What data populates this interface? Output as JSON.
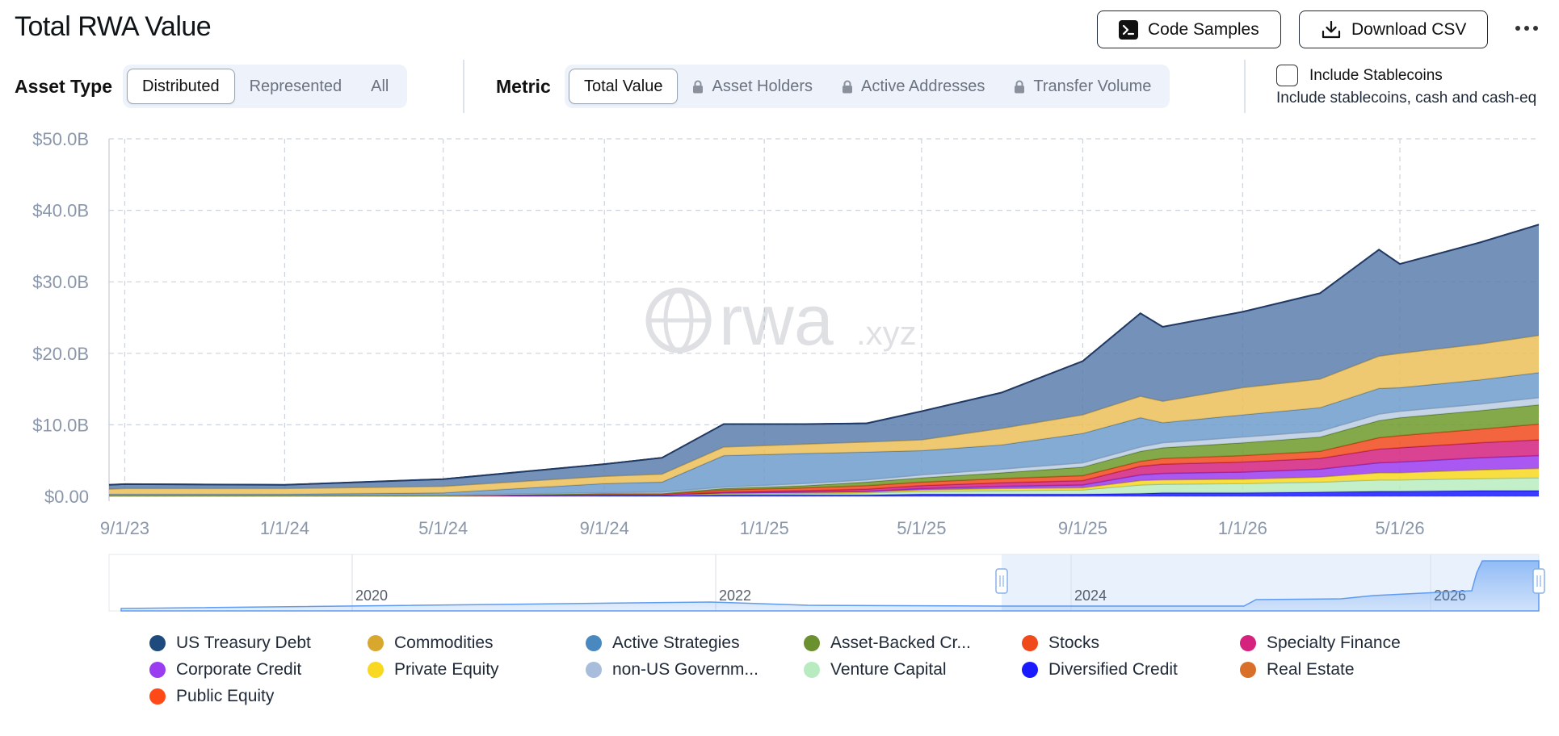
{
  "title": "Total RWA Value",
  "toolbar": {
    "code_label": "Code Samples",
    "download_label": "Download CSV"
  },
  "asset_type": {
    "label": "Asset Type",
    "options": [
      "Distributed",
      "Represented",
      "All"
    ],
    "selected": "Distributed"
  },
  "metric": {
    "label": "Metric",
    "options": [
      "Total Value",
      "Asset Holders",
      "Active Addresses",
      "Transfer Volume"
    ],
    "locked": [
      false,
      true,
      true,
      true
    ],
    "selected": "Total Value"
  },
  "stablecoins": {
    "label": "Include Stablecoins",
    "description": "Include stablecoins, cash and cash-eq",
    "checked": false
  },
  "chart_data": {
    "type": "area",
    "stacked": true,
    "yticks": [
      "$0.00",
      "$10.0B",
      "$20.0B",
      "$30.0B",
      "$40.0B",
      "$50.0B"
    ],
    "ylim": [
      0,
      50
    ],
    "xticks": [
      "9/1/23",
      "1/1/24",
      "5/1/24",
      "9/1/24",
      "1/1/25",
      "5/1/25",
      "9/1/25",
      "1/1/26",
      "5/1/26"
    ],
    "x": [
      "2023-08-20",
      "2023-09-01",
      "2024-01-01",
      "2024-05-01",
      "2024-09-01",
      "2024-10-15",
      "2024-12-01",
      "2025-02-01",
      "2025-03-20",
      "2025-05-01",
      "2025-07-01",
      "2025-09-01",
      "2025-10-15",
      "2025-11-01",
      "2026-01-01",
      "2026-03-01",
      "2026-04-15",
      "2026-05-01",
      "2026-07-01",
      "2026-08-15"
    ],
    "grid": true,
    "legend_position": "bottom",
    "series": [
      {
        "name": "Diversified Credit",
        "color": "#1a1aff",
        "values": [
          0.1,
          0.1,
          0.1,
          0.1,
          0.1,
          0.1,
          0.2,
          0.2,
          0.2,
          0.3,
          0.3,
          0.3,
          0.4,
          0.5,
          0.5,
          0.6,
          0.7,
          0.7,
          0.8,
          0.8
        ]
      },
      {
        "name": "Venture Capital",
        "color": "#b8ecc0",
        "values": [
          0,
          0,
          0,
          0,
          0.1,
          0.1,
          0.1,
          0.2,
          0.3,
          0.4,
          0.5,
          0.6,
          1.2,
          1.2,
          1.3,
          1.4,
          1.6,
          1.6,
          1.7,
          1.8
        ]
      },
      {
        "name": "Private Equity",
        "color": "#f8d820",
        "values": [
          0,
          0,
          0,
          0,
          0,
          0,
          0.1,
          0.1,
          0.1,
          0.2,
          0.3,
          0.3,
          0.6,
          0.6,
          0.6,
          0.7,
          1.0,
          1.0,
          1.2,
          1.3
        ]
      },
      {
        "name": "Corporate Credit",
        "color": "#9a3cf0",
        "values": [
          0,
          0,
          0,
          0,
          0,
          0,
          0.1,
          0.1,
          0.1,
          0.2,
          0.3,
          0.4,
          0.8,
          0.9,
          1.0,
          1.1,
          1.4,
          1.5,
          1.7,
          1.8
        ]
      },
      {
        "name": "Specialty Finance",
        "color": "#d4227e",
        "values": [
          0,
          0,
          0,
          0,
          0,
          0,
          0.1,
          0.2,
          0.3,
          0.4,
          0.5,
          0.6,
          1.2,
          1.3,
          1.4,
          1.5,
          1.9,
          2.0,
          2.1,
          2.2
        ]
      },
      {
        "name": "Stocks",
        "color": "#f04a1c",
        "values": [
          0,
          0,
          0,
          0,
          0.1,
          0.1,
          0.3,
          0.4,
          0.5,
          0.5,
          0.6,
          0.7,
          0.7,
          0.8,
          0.9,
          1.0,
          1.6,
          1.7,
          1.9,
          2.2
        ]
      },
      {
        "name": "Asset-Backed Credit",
        "color": "#6e9a2a",
        "values": [
          0,
          0,
          0,
          0,
          0.1,
          0.1,
          0.2,
          0.3,
          0.5,
          0.6,
          0.8,
          1.2,
          1.4,
          1.5,
          1.8,
          2.0,
          2.4,
          2.5,
          2.6,
          2.7
        ]
      },
      {
        "name": "non-US Government Debt",
        "color": "#bccce4",
        "values": [
          0.1,
          0.1,
          0.1,
          0.1,
          0.1,
          0.2,
          0.2,
          0.3,
          0.3,
          0.4,
          0.5,
          0.6,
          0.6,
          0.7,
          0.8,
          0.8,
          0.9,
          0.9,
          0.9,
          1.0
        ]
      },
      {
        "name": "Active Strategies",
        "color": "#6d9ccd",
        "values": [
          0.1,
          0.1,
          0.1,
          0.3,
          1.3,
          1.4,
          4.4,
          4.2,
          3.9,
          3.4,
          3.4,
          4.1,
          4.1,
          2.8,
          3.1,
          3.3,
          3.6,
          3.3,
          3.4,
          3.5
        ]
      },
      {
        "name": "Commodities",
        "color": "#ecc058",
        "values": [
          0.7,
          0.8,
          0.8,
          0.9,
          1.0,
          1.1,
          1.2,
          1.3,
          1.4,
          1.5,
          2.3,
          2.6,
          3.0,
          3.0,
          3.8,
          4.0,
          4.5,
          4.8,
          5.0,
          5.2
        ]
      },
      {
        "name": "US Treasury Debt",
        "color": "#5a7ead",
        "values": [
          0.6,
          0.6,
          0.5,
          1.0,
          1.7,
          2.3,
          3.2,
          2.8,
          2.6,
          4.0,
          5.0,
          7.5,
          11.6,
          10.4,
          10.6,
          12.0,
          14.9,
          12.5,
          14.2,
          15.5
        ]
      },
      {
        "name": "Real Estate",
        "color": "#d8702a",
        "values": [
          0,
          0,
          0,
          0,
          0,
          0,
          0,
          0,
          0,
          0,
          0,
          0,
          0,
          0,
          0,
          0,
          0,
          0,
          0,
          0
        ]
      },
      {
        "name": "Public Equity",
        "color": "#ff4a18",
        "values": [
          0,
          0,
          0,
          0,
          0,
          0,
          0,
          0,
          0,
          0,
          0,
          0,
          0,
          0,
          0,
          0,
          0,
          0,
          0,
          0
        ]
      }
    ],
    "navigator": {
      "labels": [
        "2020",
        "2022",
        "2024",
        "2026"
      ]
    },
    "watermark": "rwa.xyz"
  },
  "legend": [
    {
      "label": "US Treasury Debt",
      "color": "#1e4a7e"
    },
    {
      "label": "Commodities",
      "color": "#d8a82e"
    },
    {
      "label": "Active Strategies",
      "color": "#4a88c0"
    },
    {
      "label": "Asset-Backed Cr...",
      "color": "#6a9030"
    },
    {
      "label": "Stocks",
      "color": "#f04a1c"
    },
    {
      "label": "Specialty Finance",
      "color": "#d4227e"
    },
    {
      "label": "Corporate Credit",
      "color": "#9a3cf0"
    },
    {
      "label": "Private Equity",
      "color": "#f8d820"
    },
    {
      "label": "non-US Governm...",
      "color": "#a8bcdc"
    },
    {
      "label": "Venture Capital",
      "color": "#b8ecc0"
    },
    {
      "label": "Diversified Credit",
      "color": "#1a1aff"
    },
    {
      "label": "Real Estate",
      "color": "#d8702a"
    },
    {
      "label": "Public Equity",
      "color": "#ff4a18"
    }
  ]
}
